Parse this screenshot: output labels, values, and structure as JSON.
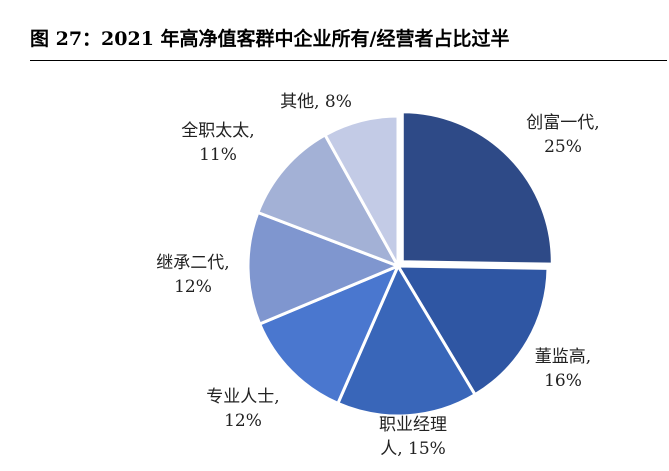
{
  "title": "图 27：2021 年高净值客群中企业所有/经营者占比过半",
  "chart_data": {
    "type": "pie",
    "title": "图 27：2021 年高净值客群中企业所有/经营者占比过半",
    "slices": [
      {
        "name": "创富一代",
        "value": 25,
        "color": "#2e4a87",
        "label_lines": [
          "创富一代,",
          "25%"
        ]
      },
      {
        "name": "董监高",
        "value": 16,
        "color": "#2f56a3",
        "label_lines": [
          "董监高,",
          "16%"
        ]
      },
      {
        "name": "职业经理人",
        "value": 15,
        "color": "#3966b9",
        "label_lines": [
          "职业经理",
          "人, 15%"
        ]
      },
      {
        "name": "专业人士",
        "value": 12,
        "color": "#4a77cf",
        "label_lines": [
          "专业人士,",
          "12%"
        ]
      },
      {
        "name": "继承二代",
        "value": 12,
        "color": "#7f96cf",
        "label_lines": [
          "继承二代,",
          "12%"
        ]
      },
      {
        "name": "全职太太",
        "value": 11,
        "color": "#a3b1d6",
        "label_lines": [
          "全职太太,",
          "11%"
        ]
      },
      {
        "name": "其他",
        "value": 8,
        "color": "#c3cbe6",
        "label_lines": [
          "其他, 8%"
        ]
      }
    ]
  }
}
